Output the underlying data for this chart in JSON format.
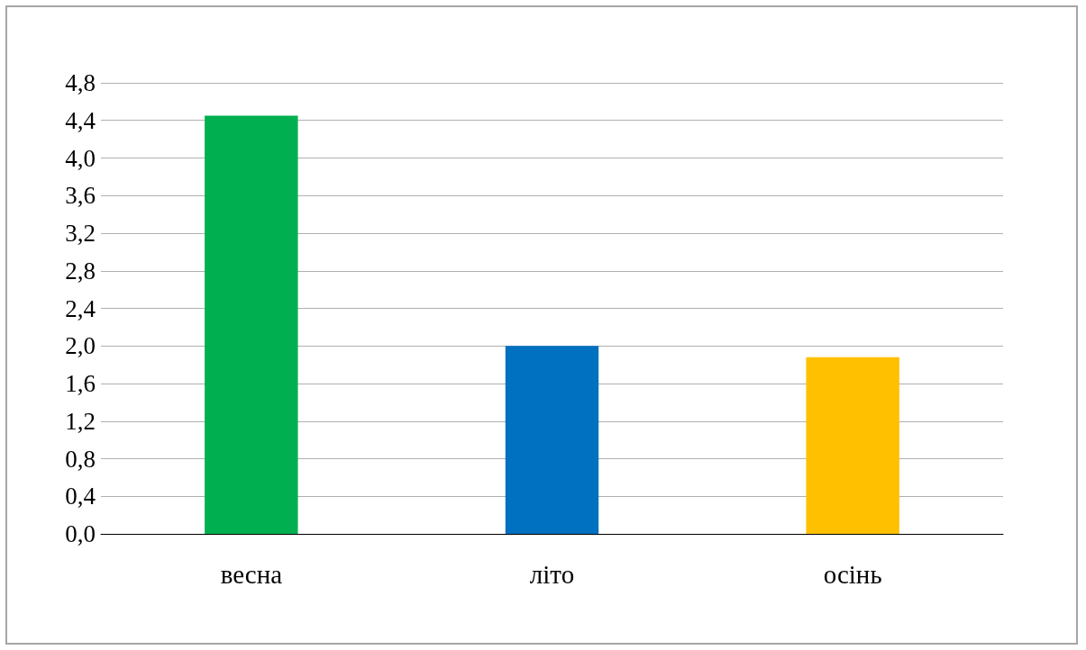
{
  "chart_data": {
    "type": "bar",
    "categories": [
      "весна",
      "літо",
      "осінь"
    ],
    "values": [
      4.45,
      2.0,
      1.88
    ],
    "colors": [
      "#00b050",
      "#0070c0",
      "#ffc000"
    ],
    "ylim": [
      0,
      4.8
    ],
    "yticks": [
      {
        "value": 0,
        "label": "0,0"
      },
      {
        "value": 0.4,
        "label": "0,4"
      },
      {
        "value": 0.8,
        "label": "0,8"
      },
      {
        "value": 1.2,
        "label": "1,2"
      },
      {
        "value": 1.6,
        "label": "1,6"
      },
      {
        "value": 2.0,
        "label": "2,0"
      },
      {
        "value": 2.4,
        "label": "2,4"
      },
      {
        "value": 2.8,
        "label": "2,8"
      },
      {
        "value": 3.2,
        "label": "3,2"
      },
      {
        "value": 3.6,
        "label": "3,6"
      },
      {
        "value": 4.0,
        "label": "4,0"
      },
      {
        "value": 4.4,
        "label": "4,4"
      },
      {
        "value": 4.8,
        "label": "4,8"
      }
    ],
    "grid": "y"
  }
}
